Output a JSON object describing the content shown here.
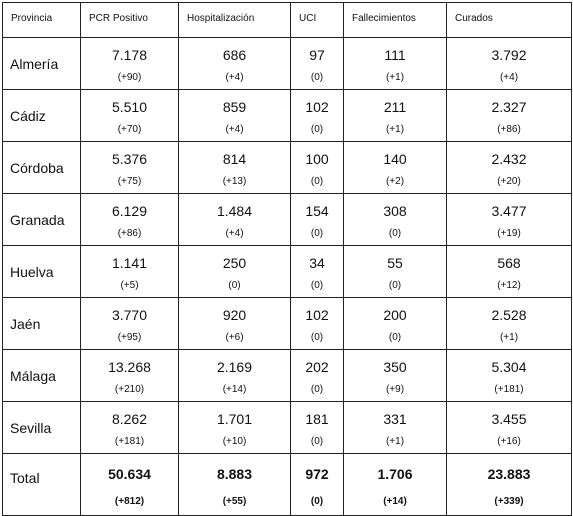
{
  "table": {
    "headers": [
      "Provincia",
      "PCR Positivo",
      "Hospitalización",
      "UCI",
      "Fallecimientos",
      "Curados"
    ],
    "rows": [
      {
        "province": "Almería",
        "cells": [
          {
            "value": "7.178",
            "change": "(+90)"
          },
          {
            "value": "686",
            "change": "(+4)"
          },
          {
            "value": "97",
            "change": "(0)"
          },
          {
            "value": "111",
            "change": "(+1)"
          },
          {
            "value": "3.792",
            "change": "(+4)"
          }
        ]
      },
      {
        "province": "Cádiz",
        "cells": [
          {
            "value": "5.510",
            "change": "(+70)"
          },
          {
            "value": "859",
            "change": "(+4)"
          },
          {
            "value": "102",
            "change": "(0)"
          },
          {
            "value": "211",
            "change": "(+1)"
          },
          {
            "value": "2.327",
            "change": "(+86)"
          }
        ]
      },
      {
        "province": "Córdoba",
        "cells": [
          {
            "value": "5.376",
            "change": "(+75)"
          },
          {
            "value": "814",
            "change": "(+13)"
          },
          {
            "value": "100",
            "change": "(0)"
          },
          {
            "value": "140",
            "change": "(+2)"
          },
          {
            "value": "2.432",
            "change": "(+20)"
          }
        ]
      },
      {
        "province": "Granada",
        "cells": [
          {
            "value": "6.129",
            "change": "(+86)"
          },
          {
            "value": "1.484",
            "change": "(+4)"
          },
          {
            "value": "154",
            "change": "(0)"
          },
          {
            "value": "308",
            "change": "(0)"
          },
          {
            "value": "3.477",
            "change": "(+19)"
          }
        ]
      },
      {
        "province": "Huelva",
        "cells": [
          {
            "value": "1.141",
            "change": "(+5)"
          },
          {
            "value": "250",
            "change": "(0)"
          },
          {
            "value": "34",
            "change": "(0)"
          },
          {
            "value": "55",
            "change": "(0)"
          },
          {
            "value": "568",
            "change": "(+12)"
          }
        ]
      },
      {
        "province": "Jaén",
        "cells": [
          {
            "value": "3.770",
            "change": "(+95)"
          },
          {
            "value": "920",
            "change": "(+6)"
          },
          {
            "value": "102",
            "change": "(0)"
          },
          {
            "value": "200",
            "change": "(0)"
          },
          {
            "value": "2.528",
            "change": "(+1)"
          }
        ]
      },
      {
        "province": "Málaga",
        "cells": [
          {
            "value": "13.268",
            "change": "(+210)"
          },
          {
            "value": "2.169",
            "change": "(+14)"
          },
          {
            "value": "202",
            "change": "(0)"
          },
          {
            "value": "350",
            "change": "(+9)"
          },
          {
            "value": "5.304",
            "change": "(+181)"
          }
        ]
      },
      {
        "province": "Sevilla",
        "cells": [
          {
            "value": "8.262",
            "change": "(+181)"
          },
          {
            "value": "1.701",
            "change": "(+10)"
          },
          {
            "value": "181",
            "change": "(0)"
          },
          {
            "value": "331",
            "change": "(+1)"
          },
          {
            "value": "3.455",
            "change": "(+16)"
          }
        ]
      }
    ],
    "total": {
      "province": "Total",
      "cells": [
        {
          "value": "50.634",
          "change": "(+812)"
        },
        {
          "value": "8.883",
          "change": "(+55)"
        },
        {
          "value": "972",
          "change": "(0)"
        },
        {
          "value": "1.706",
          "change": "(+14)"
        },
        {
          "value": "23.883",
          "change": "(+339)"
        }
      ]
    }
  }
}
